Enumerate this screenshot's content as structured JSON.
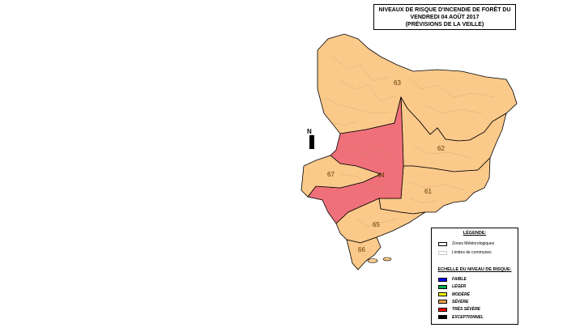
{
  "title": {
    "line1": "Niveaux de risque d'incendie de forêt du",
    "line2": "vendredi 04 août 2017",
    "line3": "(Prévisions de la Veille)"
  },
  "north_label": "N",
  "zones": [
    {
      "id": "63",
      "level": "Sévère"
    },
    {
      "id": "62",
      "level": "Sévère"
    },
    {
      "id": "61",
      "level": "Sévère"
    },
    {
      "id": "64",
      "level": "Très sévère"
    },
    {
      "id": "65",
      "level": "Sévère"
    },
    {
      "id": "66",
      "level": "Sévère"
    },
    {
      "id": "67",
      "level": "Sévère"
    }
  ],
  "legend": {
    "title": "Légende:",
    "zones_label": "Zones Météorologiques",
    "communes_label": "Limites de communes",
    "scale_title": "Echelle du niveau de risque:",
    "levels": [
      {
        "label": "Faible",
        "color": "#0000ff"
      },
      {
        "label": "Léger",
        "color": "#00b050"
      },
      {
        "label": "Modéré",
        "color": "#ffff00"
      },
      {
        "label": "Sévère",
        "color": "#f9a64a"
      },
      {
        "label": "Très sévère",
        "color": "#ff0000"
      },
      {
        "label": "Exceptionnel",
        "color": "#000000"
      }
    ]
  },
  "colors": {
    "severe_fill": "#fbc98a",
    "tres_severe_fill": "#f0707a",
    "zone_border": "#000000",
    "commune_border": "#b0956a"
  }
}
